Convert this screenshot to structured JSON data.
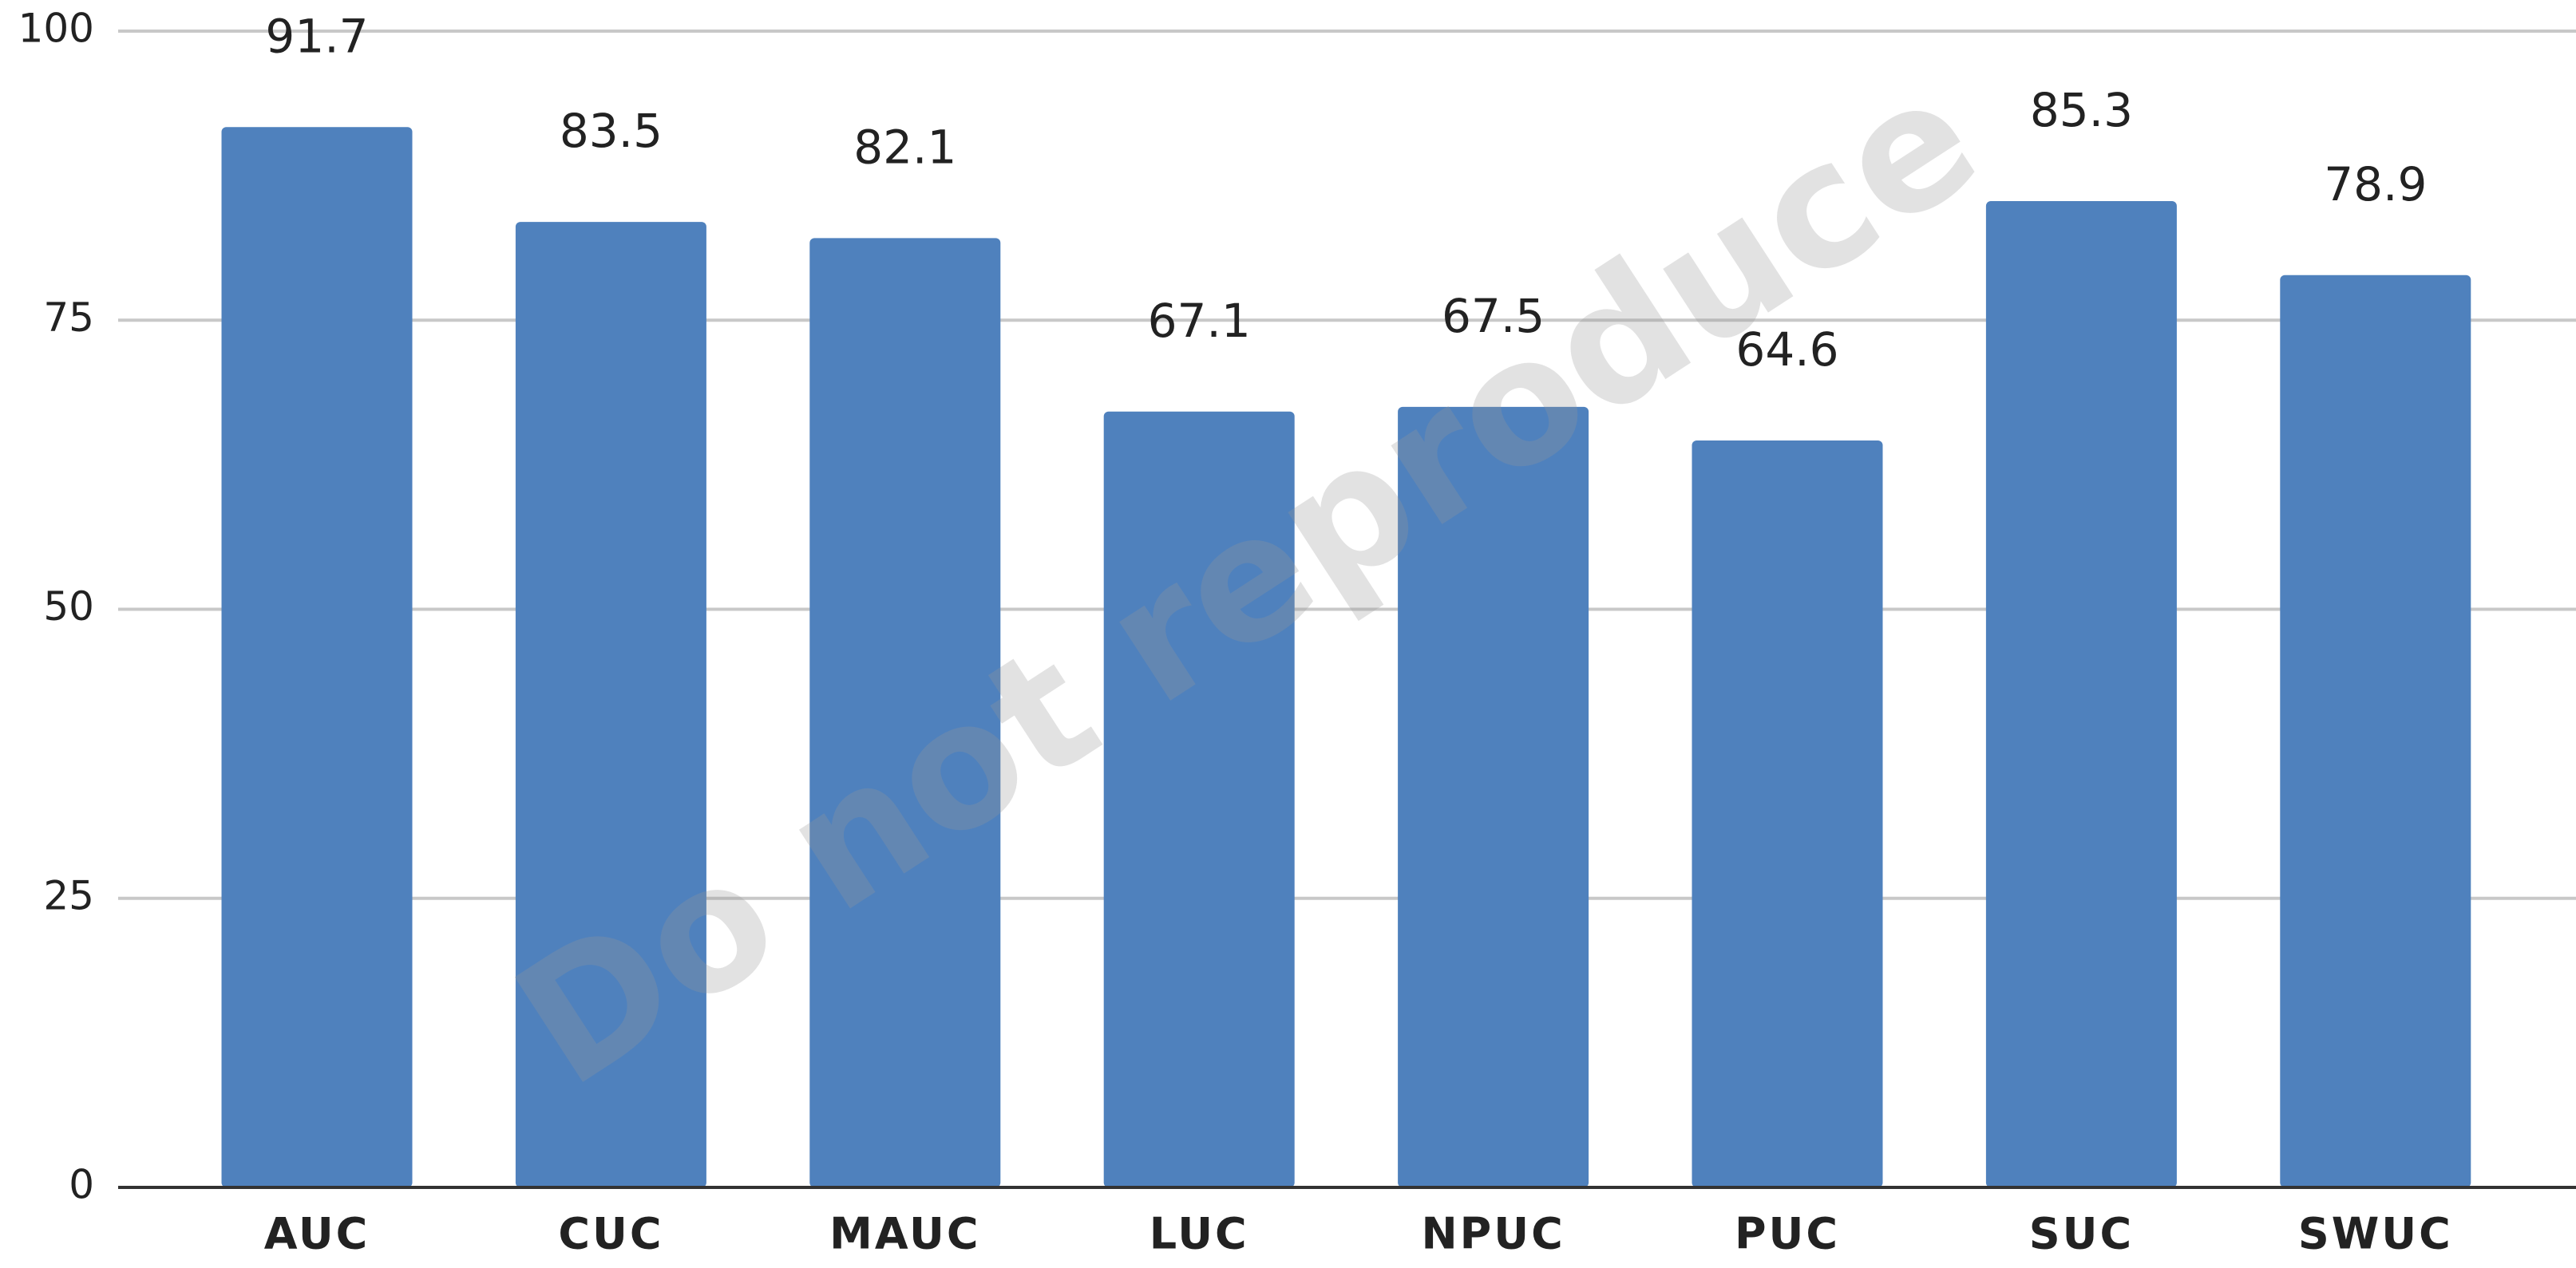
{
  "chart_data": {
    "type": "bar",
    "categories": [
      "AUC",
      "CUC",
      "MAUC",
      "LUC",
      "NPUC",
      "PUC",
      "SUC",
      "SWUC"
    ],
    "values": [
      91.7,
      83.5,
      82.1,
      67.1,
      67.5,
      64.6,
      85.3,
      78.9
    ],
    "color": "#4f81bd",
    "ylim": [
      0,
      100
    ],
    "yticks": [
      0,
      25,
      50,
      75,
      100
    ],
    "grid": true,
    "watermark": "Do not reproduce"
  }
}
